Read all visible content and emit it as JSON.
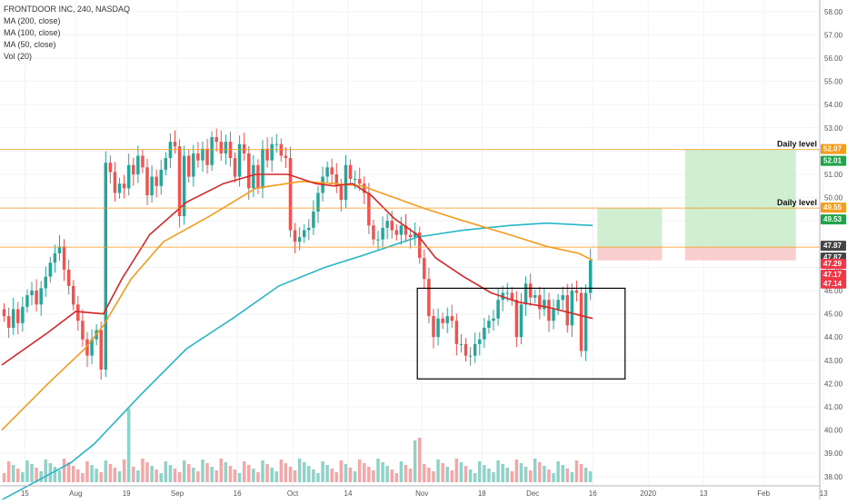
{
  "legend": {
    "title": "FRONTDOOR INC, 240, NASDAQ",
    "indicators": [
      "MA (200, close)",
      "MA (100, close)",
      "MA (50, close)",
      "Vol (20)"
    ]
  },
  "chart_data": {
    "type": "candlestick",
    "ylim": [
      37.6,
      58.5
    ],
    "y_ticks": [
      38,
      39,
      40,
      41,
      42,
      43,
      44,
      45,
      46,
      47,
      48,
      49,
      50,
      51,
      52,
      53,
      54,
      55,
      56,
      57,
      58
    ],
    "y_tick_labels": [
      "38.00",
      "39.00",
      "40.00",
      "41.00",
      "42.00",
      "43.00",
      "44.00",
      "45.00",
      "46.00",
      "47.00",
      "48.00",
      "49.00",
      "50.00",
      "51.00",
      "52.00",
      "53.00",
      "54.00",
      "55.00",
      "56.00",
      "57.00",
      "58.00"
    ],
    "x_ticks": [
      {
        "label": "15",
        "bar": 5
      },
      {
        "label": "Aug",
        "bar": 16
      },
      {
        "label": "19",
        "bar": 27
      },
      {
        "label": "Sep",
        "bar": 38
      },
      {
        "label": "16",
        "bar": 51
      },
      {
        "label": "Oct",
        "bar": 63
      },
      {
        "label": "14",
        "bar": 75
      },
      {
        "label": "Nov",
        "bar": 91
      },
      {
        "label": "18",
        "bar": 104
      },
      {
        "label": "Dec",
        "bar": 115
      },
      {
        "label": "16",
        "bar": 128
      },
      {
        "label": "2020",
        "bar": 140
      },
      {
        "label": "13",
        "bar": 152
      },
      {
        "label": "Feb",
        "bar": 165
      },
      {
        "label": "13",
        "bar": 178
      }
    ],
    "closes": [
      44.9,
      44.4,
      45.2,
      44.6,
      45.3,
      45.8,
      46.0,
      45.4,
      46.1,
      46.6,
      47.2,
      47.6,
      47.9,
      46.9,
      46.2,
      45.4,
      44.7,
      43.9,
      43.2,
      43.9,
      44.3,
      42.6,
      51.5,
      51.1,
      50.2,
      50.6,
      50.4,
      51.4,
      51.0,
      51.8,
      51.3,
      50.1,
      50.9,
      50.5,
      51.2,
      51.7,
      52.4,
      52.2,
      49.2,
      51.8,
      50.9,
      51.9,
      51.6,
      52.1,
      51.4,
      52.6,
      52.4,
      51.9,
      52.4,
      51.7,
      50.9,
      52.3,
      51.9,
      50.4,
      51.4,
      50.4,
      52.1,
      51.6,
      52.3,
      52.3,
      51.8,
      51.7,
      48.6,
      48.1,
      48.3,
      48.6,
      48.7,
      49.4,
      50.2,
      50.9,
      51.3,
      51.0,
      50.5,
      49.9,
      51.4,
      50.8,
      50.8,
      50.6,
      50.2,
      48.8,
      48.2,
      48.2,
      48.7,
      49.0,
      48.6,
      48.4,
      48.8,
      48.4,
      48.3,
      48.5,
      47.4,
      46.5,
      44.9,
      44.0,
      44.8,
      44.6,
      44.9,
      44.7,
      43.7,
      43.7,
      43.2,
      43.2,
      43.7,
      43.9,
      44.4,
      44.7,
      44.8,
      45.6,
      45.9,
      45.9,
      45.6,
      44.0,
      45.4,
      46.3,
      45.7,
      45.8,
      45.2,
      45.6,
      44.7,
      45.2,
      45.6,
      45.8,
      44.5,
      46.0,
      45.9,
      43.4,
      45.9,
      47.3
    ],
    "series": [
      {
        "name": "MA (200, close)",
        "color": "#26b6c6",
        "points": [
          [
            0,
            37.0
          ],
          [
            15,
            38.6
          ],
          [
            20,
            39.4
          ],
          [
            30,
            41.5
          ],
          [
            40,
            43.5
          ],
          [
            50,
            44.8
          ],
          [
            60,
            46.2
          ],
          [
            70,
            47.0
          ],
          [
            78,
            47.5
          ],
          [
            90,
            48.3
          ],
          [
            100,
            48.6
          ],
          [
            110,
            48.8
          ],
          [
            118,
            48.9
          ],
          [
            128,
            48.8
          ]
        ]
      },
      {
        "name": "MA (100, close)",
        "color": "#f59b1e",
        "points": [
          [
            0,
            40.0
          ],
          [
            10,
            42.0
          ],
          [
            18,
            43.5
          ],
          [
            22,
            44.5
          ],
          [
            28,
            46.5
          ],
          [
            35,
            48.1
          ],
          [
            45,
            49.2
          ],
          [
            55,
            50.4
          ],
          [
            65,
            50.7
          ],
          [
            72,
            50.6
          ],
          [
            78,
            50.5
          ],
          [
            85,
            50.0
          ],
          [
            92,
            49.5
          ],
          [
            100,
            49.0
          ],
          [
            110,
            48.4
          ],
          [
            118,
            47.9
          ],
          [
            125,
            47.6
          ],
          [
            128,
            47.3
          ]
        ]
      },
      {
        "name": "MA (50, close)",
        "color": "#d62728",
        "points": [
          [
            0,
            42.8
          ],
          [
            10,
            44.2
          ],
          [
            16,
            45.1
          ],
          [
            22,
            45.0
          ],
          [
            26,
            46.5
          ],
          [
            32,
            48.4
          ],
          [
            40,
            49.8
          ],
          [
            48,
            50.6
          ],
          [
            55,
            51.0
          ],
          [
            62,
            51.0
          ],
          [
            68,
            50.6
          ],
          [
            72,
            50.5
          ],
          [
            76,
            50.6
          ],
          [
            80,
            50.1
          ],
          [
            85,
            49.1
          ],
          [
            90,
            48.4
          ],
          [
            94,
            47.4
          ],
          [
            100,
            46.6
          ],
          [
            106,
            45.9
          ],
          [
            112,
            45.5
          ],
          [
            118,
            45.3
          ],
          [
            124,
            45.0
          ],
          [
            128,
            44.8
          ]
        ]
      }
    ],
    "price_labels": [
      {
        "value": "52.07",
        "color": "#f59b1e"
      },
      {
        "value": "52.01",
        "color": "#22a34a"
      },
      {
        "value": "49.55",
        "color": "#f59b1e"
      },
      {
        "value": "49.53",
        "color": "#22a34a"
      },
      {
        "value": "47.87",
        "color": "#444444"
      },
      {
        "value": "47.87",
        "color": "#444444"
      },
      {
        "value": "47.29",
        "color": "#f23645"
      },
      {
        "value": "47.17",
        "color": "#f23645"
      },
      {
        "value": "47.14",
        "color": "#f23645"
      }
    ],
    "annotations": [
      {
        "text": "Daily level",
        "value": 52.07
      },
      {
        "text": "Daily level",
        "value": 49.55
      }
    ],
    "horizontal_lines": [
      {
        "value": 52.07,
        "color": "#f59b1e"
      },
      {
        "value": 49.55,
        "color": "#f59b1e"
      },
      {
        "value": 47.87,
        "color": "#f59b1e"
      }
    ],
    "box": {
      "bar_start": 90,
      "bar_end": 135,
      "y_low": 42.2,
      "y_high": 46.1
    },
    "target_zones": [
      {
        "bar_start": 129,
        "bar_end": 143,
        "top": 49.55,
        "bottom": 47.87,
        "color": "#c8ebc8"
      },
      {
        "bar_start": 129,
        "bar_end": 143,
        "top": 47.87,
        "bottom": 47.3,
        "color": "#f7c6c6"
      },
      {
        "bar_start": 148,
        "bar_end": 172,
        "top": 52.07,
        "bottom": 47.87,
        "color": "#c8ebc8"
      },
      {
        "bar_start": 148,
        "bar_end": 172,
        "top": 47.87,
        "bottom": 47.3,
        "color": "#f7c6c6"
      }
    ],
    "colors": {
      "up": "#26a69a",
      "down": "#ef5350",
      "vol_up": "#8fd3c8",
      "vol_down": "#f5a6a6",
      "grid": "#f0f3fa"
    }
  }
}
